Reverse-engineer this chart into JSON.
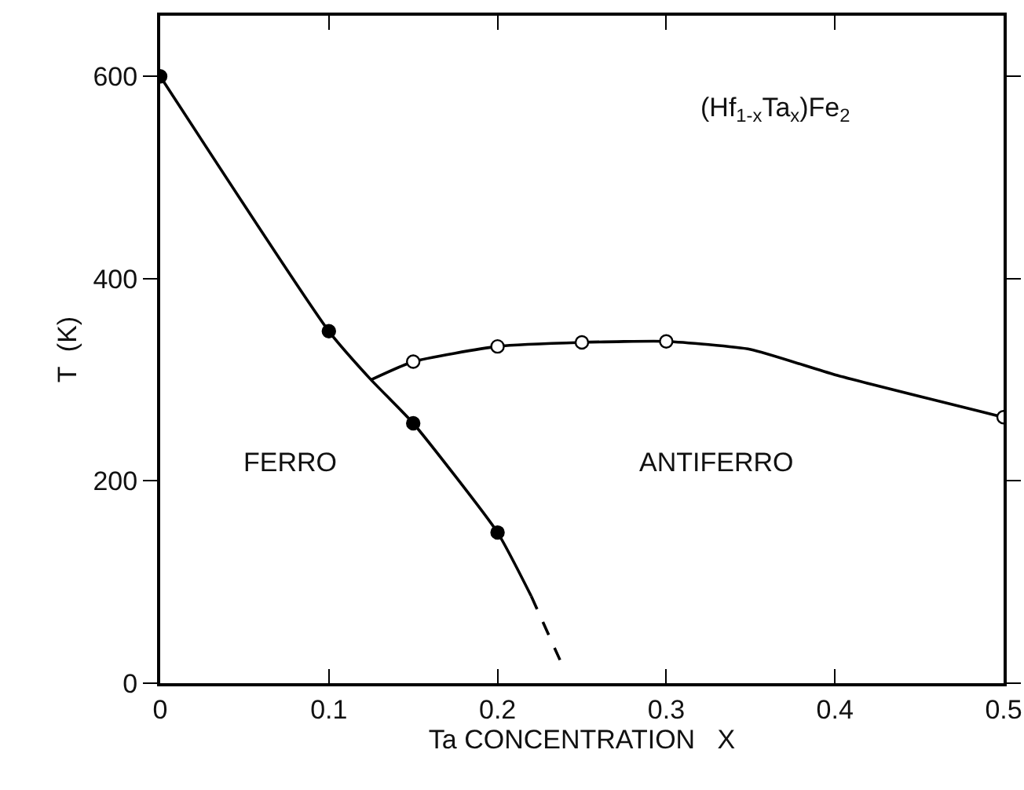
{
  "chart_data": {
    "type": "line",
    "xlabel": "Ta CONCENTRATION   X",
    "ylabel": "T  (K)",
    "xlim": [
      0,
      0.5
    ],
    "xticks": [
      0,
      0.1,
      0.2,
      0.3,
      0.4,
      0.5
    ],
    "ylim": [
      0,
      660
    ],
    "yticks": [
      0,
      200,
      400,
      600
    ],
    "grid": false,
    "series": [
      {
        "color": "#000000",
        "line_style": "solid",
        "x": [
          0,
          0.1,
          0.125,
          0.15,
          0.2,
          0.22
        ],
        "values": [
          600,
          348,
          300,
          257,
          149,
          86
        ]
      },
      {
        "color": "#000000",
        "line_style": "dashed",
        "x": [
          0.22,
          0.237
        ],
        "values": [
          86,
          23
        ]
      },
      {
        "color": "#000000",
        "line_style": "solid",
        "x": [
          0.125,
          0.15,
          0.2,
          0.25,
          0.3,
          0.35,
          0.4,
          0.5
        ],
        "values": [
          300,
          318,
          333,
          337,
          338,
          330,
          305,
          263
        ]
      },
      {
        "type": "scatter",
        "marker": "circle",
        "color": "#000000",
        "x": [
          0,
          0.1,
          0.15,
          0.2
        ],
        "values": [
          600,
          348,
          257,
          149
        ]
      },
      {
        "type": "scatter",
        "marker": "circle",
        "color": "#ffffff",
        "x": [
          0.15,
          0.2,
          0.25,
          0.3,
          0.5
        ],
        "values": [
          318,
          333,
          337,
          338,
          263
        ]
      }
    ],
    "annotations": [
      "(Hf$_{1-x}$Ta$_{x}$)Fe$_{2}$",
      "FERRO",
      "ANTIFERRO"
    ]
  }
}
